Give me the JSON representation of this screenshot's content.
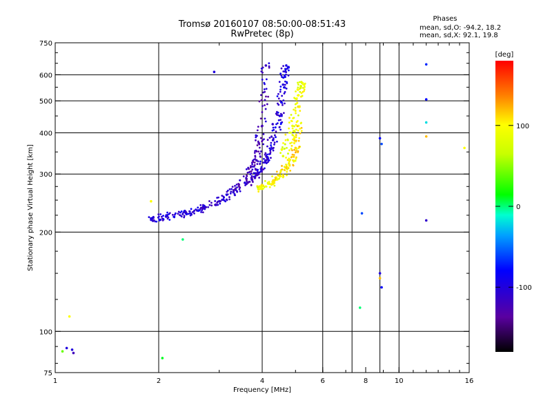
{
  "chart_data": {
    "type": "scatter",
    "title": "Tromsø 20160107 08:50:00-08:51:43",
    "subtitle": "RwPretec (8p)",
    "xlabel": "Frequency [MHz]",
    "ylabel": "Stationary phase Virtual Height [km]",
    "xscale": "log",
    "yscale": "log",
    "xlim": [
      1,
      16
    ],
    "ylim": [
      75,
      750
    ],
    "x_ticks": [
      1,
      2,
      4,
      6,
      8,
      10,
      16
    ],
    "x_grid": [
      2,
      4,
      6,
      7.3,
      8.8,
      10
    ],
    "y_ticks": [
      75,
      100,
      200,
      300,
      400,
      500,
      600,
      750
    ],
    "y_grid": [
      100,
      200,
      300,
      400,
      500,
      600
    ],
    "grid": true,
    "phase_stats": {
      "header": "Phases",
      "o_mode": "mean, sd,O: -94.2, 18.2",
      "x_mode": "mean, sd,X:  92.1, 19.8"
    },
    "colorbar": {
      "label": "[deg]",
      "range": [
        -180,
        180
      ],
      "ticks": [
        100,
        0,
        -100
      ],
      "location": "right"
    },
    "series": [
      {
        "name": "trace_low",
        "x": [
          1.9,
          2.1,
          2.4,
          2.7,
          3.0,
          3.3,
          3.6,
          3.85,
          4.0,
          4.1
        ],
        "y": [
          220,
          223,
          228,
          236,
          248,
          265,
          290,
          330,
          420,
          640
        ],
        "phase": [
          -100,
          -100,
          -100,
          -105,
          -110,
          -115,
          -120,
          -118,
          -120,
          -115
        ]
      },
      {
        "name": "trace_mid",
        "x": [
          3.6,
          3.9,
          4.1,
          4.3,
          4.5,
          4.6,
          4.7
        ],
        "y": [
          280,
          300,
          330,
          380,
          450,
          560,
          640
        ],
        "phase": [
          -110,
          -110,
          -105,
          -100,
          -100,
          -100,
          -95
        ]
      },
      {
        "name": "trace_x",
        "x": [
          3.9,
          4.2,
          4.5,
          4.8,
          5.0,
          5.1
        ],
        "y": [
          270,
          280,
          295,
          320,
          360,
          420
        ],
        "phase": [
          90,
          95,
          100,
          105,
          110,
          100
        ]
      },
      {
        "name": "trace_x_upper",
        "x": [
          4.6,
          4.9,
          5.1,
          5.2
        ],
        "y": [
          340,
          420,
          520,
          570
        ],
        "phase": [
          80,
          90,
          95,
          85
        ]
      },
      {
        "name": "scatter",
        "x": [
          1.08,
          1.1,
          1.13,
          1.05,
          1.12,
          1.9,
          2.05,
          2.35,
          2.9,
          7.7,
          7.8,
          8.8,
          8.8,
          8.8,
          8.9,
          8.9,
          12.0,
          12.0,
          12.0,
          12.0,
          12.0,
          15.5
        ],
        "y": [
          89,
          111,
          86,
          87,
          88,
          248,
          83,
          190,
          612,
          118,
          228,
          385,
          150,
          145,
          136,
          370,
          217,
          645,
          505,
          430,
          390,
          360
        ],
        "phase": [
          -100,
          100,
          -120,
          40,
          -100,
          100,
          10,
          0,
          -100,
          0,
          -60,
          -80,
          -100,
          120,
          -80,
          -60,
          -110,
          -70,
          -80,
          -20,
          120,
          100
        ]
      }
    ]
  }
}
